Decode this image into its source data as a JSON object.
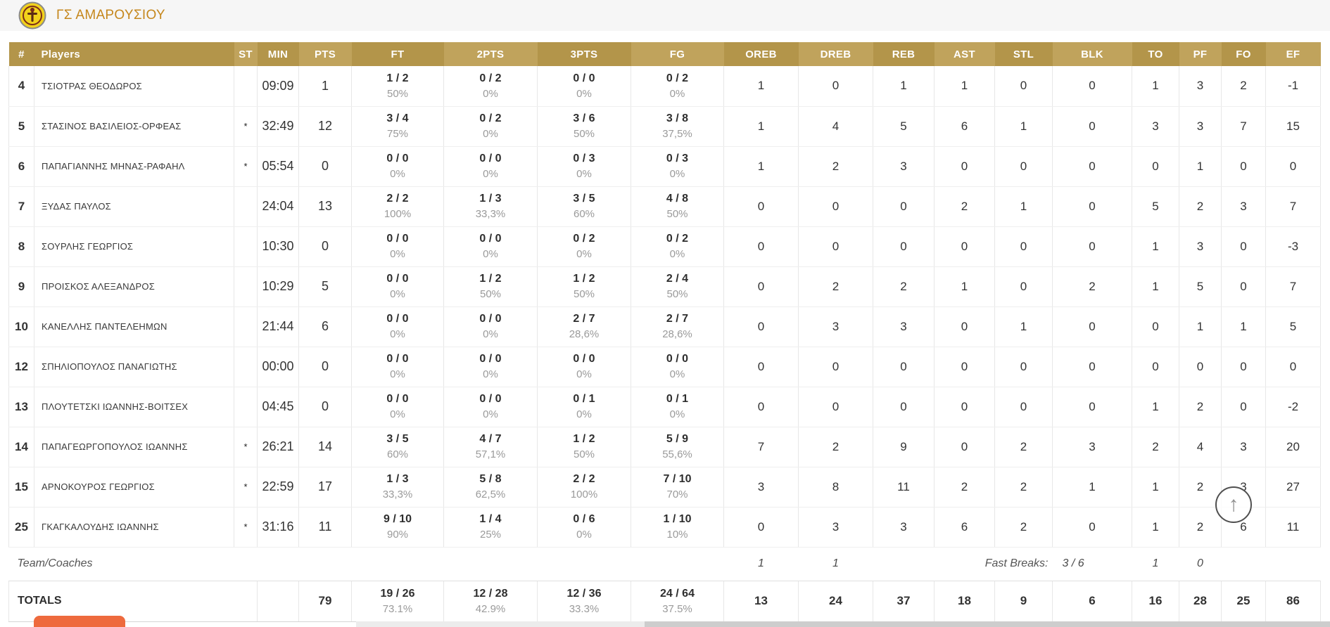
{
  "header": {
    "team_name": "ΓΣ ΑΜΑΡΟΥΣΙΟΥ"
  },
  "colors": {
    "team_name": "#c5871c",
    "header_gold_dark": "#b3954a",
    "header_gold_light": "#c0a35c",
    "accent_orange": "#ee6a3d",
    "logo_yellow": "#f2d11b"
  },
  "table": {
    "columns": [
      "#",
      "Players",
      "ST",
      "MIN",
      "PTS",
      "FT",
      "2PTS",
      "3PTS",
      "FG",
      "OREB",
      "DREB",
      "REB",
      "AST",
      "STL",
      "BLK",
      "TO",
      "PF",
      "FO",
      "EF"
    ],
    "players": [
      {
        "num": "4",
        "name": "ΤΣΙΟΤΡΑΣ ΘΕΟΔΩΡΟΣ",
        "st": "",
        "min": "09:09",
        "pts": "1",
        "ft": "1 / 2",
        "ft_pct": "50%",
        "p2": "0 / 2",
        "p2_pct": "0%",
        "p3": "0 / 0",
        "p3_pct": "0%",
        "fg": "0 / 2",
        "fg_pct": "0%",
        "oreb": "1",
        "dreb": "0",
        "reb": "1",
        "ast": "1",
        "stl": "0",
        "blk": "0",
        "to": "1",
        "pf": "3",
        "fo": "2",
        "ef": "-1"
      },
      {
        "num": "5",
        "name": "ΣΤΑΣΙΝΟΣ ΒΑΣΙΛΕΙΟΣ-ΟΡΦΕΑΣ",
        "st": "*",
        "min": "32:49",
        "pts": "12",
        "ft": "3 / 4",
        "ft_pct": "75%",
        "p2": "0 / 2",
        "p2_pct": "0%",
        "p3": "3 / 6",
        "p3_pct": "50%",
        "fg": "3 / 8",
        "fg_pct": "37,5%",
        "oreb": "1",
        "dreb": "4",
        "reb": "5",
        "ast": "6",
        "stl": "1",
        "blk": "0",
        "to": "3",
        "pf": "3",
        "fo": "7",
        "ef": "15"
      },
      {
        "num": "6",
        "name": "ΠΑΠΑΓΙΑΝΝΗΣ ΜΗΝΑΣ-ΡΑΦΑΗΛ",
        "st": "*",
        "min": "05:54",
        "pts": "0",
        "ft": "0 / 0",
        "ft_pct": "0%",
        "p2": "0 / 0",
        "p2_pct": "0%",
        "p3": "0 / 3",
        "p3_pct": "0%",
        "fg": "0 / 3",
        "fg_pct": "0%",
        "oreb": "1",
        "dreb": "2",
        "reb": "3",
        "ast": "0",
        "stl": "0",
        "blk": "0",
        "to": "0",
        "pf": "1",
        "fo": "0",
        "ef": "0"
      },
      {
        "num": "7",
        "name": "ΞΥΔΑΣ ΠΑΥΛΟΣ",
        "st": "",
        "min": "24:04",
        "pts": "13",
        "ft": "2 / 2",
        "ft_pct": "100%",
        "p2": "1 / 3",
        "p2_pct": "33,3%",
        "p3": "3 / 5",
        "p3_pct": "60%",
        "fg": "4 / 8",
        "fg_pct": "50%",
        "oreb": "0",
        "dreb": "0",
        "reb": "0",
        "ast": "2",
        "stl": "1",
        "blk": "0",
        "to": "5",
        "pf": "2",
        "fo": "3",
        "ef": "7"
      },
      {
        "num": "8",
        "name": "ΣΟΥΡΛΗΣ ΓΕΩΡΓΙΟΣ",
        "st": "",
        "min": "10:30",
        "pts": "0",
        "ft": "0 / 0",
        "ft_pct": "0%",
        "p2": "0 / 0",
        "p2_pct": "0%",
        "p3": "0 / 2",
        "p3_pct": "0%",
        "fg": "0 / 2",
        "fg_pct": "0%",
        "oreb": "0",
        "dreb": "0",
        "reb": "0",
        "ast": "0",
        "stl": "0",
        "blk": "0",
        "to": "1",
        "pf": "3",
        "fo": "0",
        "ef": "-3"
      },
      {
        "num": "9",
        "name": "ΠΡΟΙΣΚΟΣ ΑΛΕΞΑΝΔΡΟΣ",
        "st": "",
        "min": "10:29",
        "pts": "5",
        "ft": "0 / 0",
        "ft_pct": "0%",
        "p2": "1 / 2",
        "p2_pct": "50%",
        "p3": "1 / 2",
        "p3_pct": "50%",
        "fg": "2 / 4",
        "fg_pct": "50%",
        "oreb": "0",
        "dreb": "2",
        "reb": "2",
        "ast": "1",
        "stl": "0",
        "blk": "2",
        "to": "1",
        "pf": "5",
        "fo": "0",
        "ef": "7"
      },
      {
        "num": "10",
        "name": "ΚΑΝΕΛΛΗΣ ΠΑΝΤΕΛΕΗΜΩΝ",
        "st": "",
        "min": "21:44",
        "pts": "6",
        "ft": "0 / 0",
        "ft_pct": "0%",
        "p2": "0 / 0",
        "p2_pct": "0%",
        "p3": "2 / 7",
        "p3_pct": "28,6%",
        "fg": "2 / 7",
        "fg_pct": "28,6%",
        "oreb": "0",
        "dreb": "3",
        "reb": "3",
        "ast": "0",
        "stl": "1",
        "blk": "0",
        "to": "0",
        "pf": "1",
        "fo": "1",
        "ef": "5"
      },
      {
        "num": "12",
        "name": "ΣΠΗΛΙΟΠΟΥΛΟΣ ΠΑΝΑΓΙΩΤΗΣ",
        "st": "",
        "min": "00:00",
        "pts": "0",
        "ft": "0 / 0",
        "ft_pct": "0%",
        "p2": "0 / 0",
        "p2_pct": "0%",
        "p3": "0 / 0",
        "p3_pct": "0%",
        "fg": "0 / 0",
        "fg_pct": "0%",
        "oreb": "0",
        "dreb": "0",
        "reb": "0",
        "ast": "0",
        "stl": "0",
        "blk": "0",
        "to": "0",
        "pf": "0",
        "fo": "0",
        "ef": "0"
      },
      {
        "num": "13",
        "name": "ΠΛΟΥΤΕΤΣΚΙ ΙΩΑΝΝΗΣ-ΒΟΙΤΣΕΧ",
        "st": "",
        "min": "04:45",
        "pts": "0",
        "ft": "0 / 0",
        "ft_pct": "0%",
        "p2": "0 / 0",
        "p2_pct": "0%",
        "p3": "0 / 1",
        "p3_pct": "0%",
        "fg": "0 / 1",
        "fg_pct": "0%",
        "oreb": "0",
        "dreb": "0",
        "reb": "0",
        "ast": "0",
        "stl": "0",
        "blk": "0",
        "to": "1",
        "pf": "2",
        "fo": "0",
        "ef": "-2"
      },
      {
        "num": "14",
        "name": "ΠΑΠΑΓΕΩΡΓΟΠΟΥΛΟΣ ΙΩΑΝΝΗΣ",
        "st": "*",
        "min": "26:21",
        "pts": "14",
        "ft": "3 / 5",
        "ft_pct": "60%",
        "p2": "4 / 7",
        "p2_pct": "57,1%",
        "p3": "1 / 2",
        "p3_pct": "50%",
        "fg": "5 / 9",
        "fg_pct": "55,6%",
        "oreb": "7",
        "dreb": "2",
        "reb": "9",
        "ast": "0",
        "stl": "2",
        "blk": "3",
        "to": "2",
        "pf": "4",
        "fo": "3",
        "ef": "20"
      },
      {
        "num": "15",
        "name": "ΑΡΝΟΚΟΥΡΟΣ ΓΕΩΡΓΙΟΣ",
        "st": "*",
        "min": "22:59",
        "pts": "17",
        "ft": "1 / 3",
        "ft_pct": "33,3%",
        "p2": "5 / 8",
        "p2_pct": "62,5%",
        "p3": "2 / 2",
        "p3_pct": "100%",
        "fg": "7 / 10",
        "fg_pct": "70%",
        "oreb": "3",
        "dreb": "8",
        "reb": "11",
        "ast": "2",
        "stl": "2",
        "blk": "1",
        "to": "1",
        "pf": "2",
        "fo": "3",
        "ef": "27"
      },
      {
        "num": "25",
        "name": "ΓΚΑΓΚΑΛΟΥΔΗΣ ΙΩΑΝΝΗΣ",
        "st": "*",
        "min": "31:16",
        "pts": "11",
        "ft": "9 / 10",
        "ft_pct": "90%",
        "p2": "1 / 4",
        "p2_pct": "25%",
        "p3": "0 / 6",
        "p3_pct": "0%",
        "fg": "1 / 10",
        "fg_pct": "10%",
        "oreb": "0",
        "dreb": "3",
        "reb": "3",
        "ast": "6",
        "stl": "2",
        "blk": "0",
        "to": "1",
        "pf": "2",
        "fo": "6",
        "ef": "11"
      }
    ],
    "team_row": {
      "label": "Team/Coaches",
      "oreb": "1",
      "dreb": "1",
      "fast_breaks_label": "Fast Breaks:",
      "fast_breaks_value": "3 / 6",
      "to": "1",
      "pf": "0"
    },
    "totals_row": {
      "label": "TOTALS",
      "pts": "79",
      "ft": "19 / 26",
      "ft_pct": "73.1%",
      "p2": "12 / 28",
      "p2_pct": "42.9%",
      "p3": "12 / 36",
      "p3_pct": "33.3%",
      "fg": "24 / 64",
      "fg_pct": "37.5%",
      "oreb": "13",
      "dreb": "24",
      "reb": "37",
      "ast": "18",
      "stl": "9",
      "blk": "6",
      "to": "16",
      "pf": "28",
      "fo": "25",
      "ef": "86"
    }
  },
  "floating": {
    "scroll_top_icon": "↑"
  }
}
